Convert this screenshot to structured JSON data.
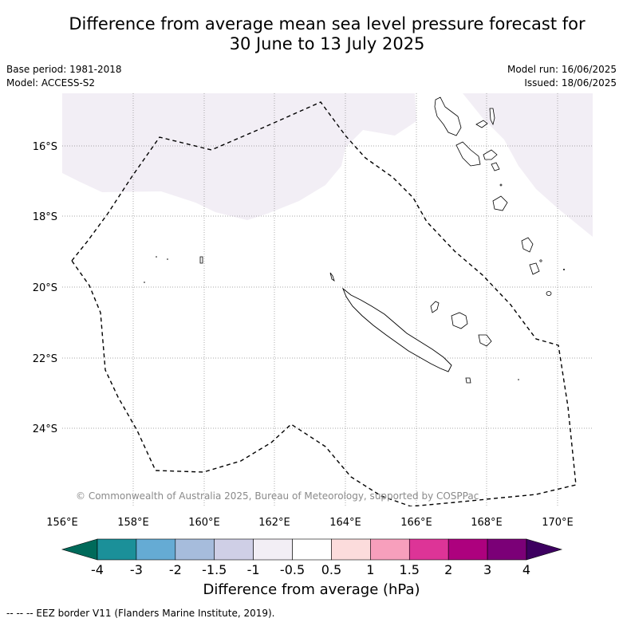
{
  "title": {
    "line1": "Difference from average mean sea level pressure forecast for",
    "line2": "30 June to 13 July 2025"
  },
  "meta": {
    "base_period": "Base period: 1981-2018",
    "model": "Model: ACCESS-S2",
    "model_run": "Model run: 16/06/2025",
    "issued": "Issued: 18/06/2025"
  },
  "map": {
    "lat_labels": [
      "16°S",
      "18°S",
      "20°S",
      "22°S",
      "24°S"
    ],
    "lon_labels": [
      "156°E",
      "158°E",
      "160°E",
      "162°E",
      "164°E",
      "166°E",
      "168°E",
      "170°E"
    ],
    "copyright": "© Commonwealth of Australia 2025, Bureau of Meteorology, supported by COSPPac",
    "colors": {
      "shade_slight_negative": "#f2eef5",
      "eez_line": "#000000",
      "coast": "#000000",
      "grid": "#888888"
    }
  },
  "colorbar": {
    "title": "Difference from average (hPa)",
    "tick_labels": [
      "-4",
      "-3",
      "-2",
      "-1.5",
      "-1",
      "-0.5",
      "0.5",
      "1",
      "1.5",
      "2",
      "3",
      "4"
    ],
    "under_color": "#006a5a",
    "over_color": "#3d0060",
    "bins": [
      {
        "color": "#1b9099"
      },
      {
        "color": "#65abd4"
      },
      {
        "color": "#a6bcdc"
      },
      {
        "color": "#cfcfe6"
      },
      {
        "color": "#f2eef5"
      },
      {
        "color": "#ffffff"
      },
      {
        "color": "#fcdcdc"
      },
      {
        "color": "#f79fbc"
      },
      {
        "color": "#dd3497"
      },
      {
        "color": "#ad017e"
      },
      {
        "color": "#7b0077"
      }
    ]
  },
  "footnote": "-- -- -- EEZ border V11 (Flanders Marine Institute, 2019)."
}
